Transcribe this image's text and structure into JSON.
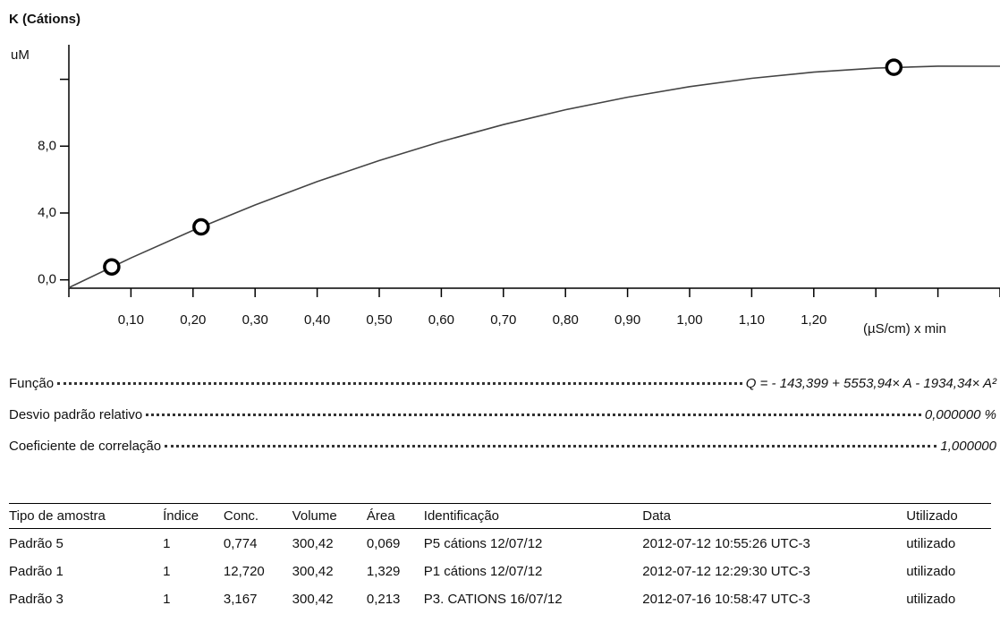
{
  "chart_data": {
    "type": "scatter",
    "title": "K (Cátions)",
    "y_label": "uM",
    "x_label": "(µS/cm) x min",
    "xlim": [
      0,
      1.5
    ],
    "ylim": [
      -0.5,
      13.8
    ],
    "xticks": [
      {
        "value": 0,
        "label": null
      },
      {
        "value": 0.1,
        "label": "0,10"
      },
      {
        "value": 0.2,
        "label": "0,20"
      },
      {
        "value": 0.3,
        "label": "0,30"
      },
      {
        "value": 0.4,
        "label": "0,40"
      },
      {
        "value": 0.5,
        "label": "0,50"
      },
      {
        "value": 0.6,
        "label": "0,60"
      },
      {
        "value": 0.7,
        "label": "0,70"
      },
      {
        "value": 0.8,
        "label": "0,80"
      },
      {
        "value": 0.9,
        "label": "0,90"
      },
      {
        "value": 1.0,
        "label": "1,00"
      },
      {
        "value": 1.1,
        "label": "1,10"
      },
      {
        "value": 1.2,
        "label": "1,20"
      },
      {
        "value": 1.3,
        "label": null
      },
      {
        "value": 1.4,
        "label": null
      },
      {
        "value": 1.5,
        "label": null
      }
    ],
    "yticks": [
      {
        "value": 0,
        "label": "0,0"
      },
      {
        "value": 4,
        "label": "4,0"
      },
      {
        "value": 8,
        "label": "8,0"
      },
      {
        "value": 12,
        "label": null
      }
    ],
    "points": {
      "x": [
        0.069,
        1.329,
        0.213
      ],
      "y": [
        0.774,
        12.72,
        3.167
      ],
      "color": "#000000"
    },
    "curve": {
      "x": [
        0,
        0.1,
        0.2,
        0.3,
        0.4,
        0.5,
        0.6,
        0.7,
        0.8,
        0.9,
        1.0,
        1.1,
        1.2,
        1.3,
        1.4,
        1.5
      ],
      "y": [
        -0.47,
        1.31,
        2.96,
        4.48,
        5.88,
        7.14,
        8.28,
        9.29,
        10.18,
        10.93,
        11.56,
        12.06,
        12.43,
        12.67,
        12.79,
        12.78
      ],
      "color": "#444444"
    }
  },
  "stats": [
    {
      "label": "Função",
      "value": "Q = - 143,399 + 5553,94× A - 1934,34× A²"
    },
    {
      "label": "Desvio padrão relativo",
      "value": "0,000000 %"
    },
    {
      "label": "Coeficiente de correlação",
      "value": "1,000000"
    }
  ],
  "table": {
    "header": [
      "Tipo de amostra",
      "Índice",
      "Conc.",
      "Volume",
      "Área",
      "Identificação",
      "Data",
      "Utilizado"
    ],
    "rows": [
      [
        "Padrão 5",
        "1",
        "0,774",
        "300,42",
        "0,069",
        "P5 cátions 12/07/12",
        "2012-07-12 10:55:26 UTC-3",
        "utilizado"
      ],
      [
        "Padrão 1",
        "1",
        "12,720",
        "300,42",
        "1,329",
        "P1 cátions 12/07/12",
        "2012-07-12 12:29:30 UTC-3",
        "utilizado"
      ],
      [
        "Padrão 3",
        "1",
        "3,167",
        "300,42",
        "0,213",
        "P3. CATIONS 16/07/12",
        "2012-07-16 10:58:47 UTC-3",
        "utilizado"
      ]
    ]
  }
}
